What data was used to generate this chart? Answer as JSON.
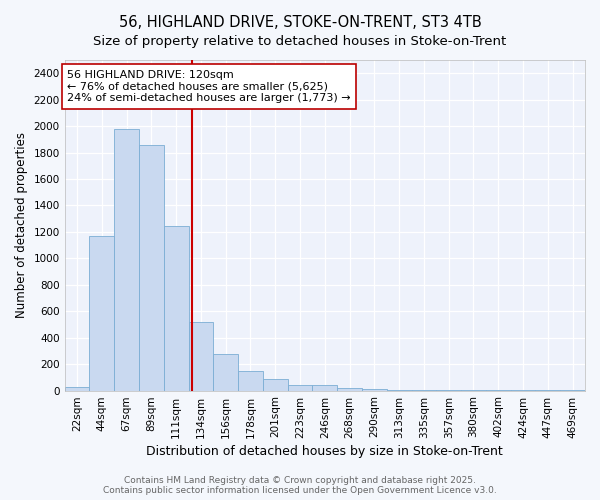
{
  "title": "56, HIGHLAND DRIVE, STOKE-ON-TRENT, ST3 4TB",
  "subtitle": "Size of property relative to detached houses in Stoke-on-Trent",
  "xlabel": "Distribution of detached houses by size in Stoke-on-Trent",
  "ylabel": "Number of detached properties",
  "categories": [
    "22sqm",
    "44sqm",
    "67sqm",
    "89sqm",
    "111sqm",
    "134sqm",
    "156sqm",
    "178sqm",
    "201sqm",
    "223sqm",
    "246sqm",
    "268sqm",
    "290sqm",
    "313sqm",
    "335sqm",
    "357sqm",
    "380sqm",
    "402sqm",
    "424sqm",
    "447sqm",
    "469sqm"
  ],
  "values": [
    25,
    1170,
    1980,
    1860,
    1245,
    520,
    275,
    150,
    90,
    45,
    40,
    20,
    15,
    5,
    2,
    1,
    1,
    1,
    1,
    1,
    5
  ],
  "bar_color": "#c9d9f0",
  "bar_edge_color": "#7badd4",
  "fig_bg_color": "#f4f7fc",
  "plot_bg_color": "#eef2fb",
  "grid_color": "#ffffff",
  "red_line_color": "#cc0000",
  "red_line_x": 4.62,
  "annotation_text": "56 HIGHLAND DRIVE: 120sqm\n← 76% of detached houses are smaller (5,625)\n24% of semi-detached houses are larger (1,773) →",
  "annotation_box_facecolor": "#ffffff",
  "annotation_box_edgecolor": "#bb0000",
  "ylim": [
    0,
    2500
  ],
  "yticks": [
    0,
    200,
    400,
    600,
    800,
    1000,
    1200,
    1400,
    1600,
    1800,
    2000,
    2200,
    2400
  ],
  "title_fontsize": 10.5,
  "subtitle_fontsize": 9.5,
  "xlabel_fontsize": 9,
  "ylabel_fontsize": 8.5,
  "tick_fontsize": 7.5,
  "annotation_fontsize": 8,
  "footer_fontsize": 6.5,
  "footer_line1": "Contains HM Land Registry data © Crown copyright and database right 2025.",
  "footer_line2": "Contains public sector information licensed under the Open Government Licence v3.0."
}
